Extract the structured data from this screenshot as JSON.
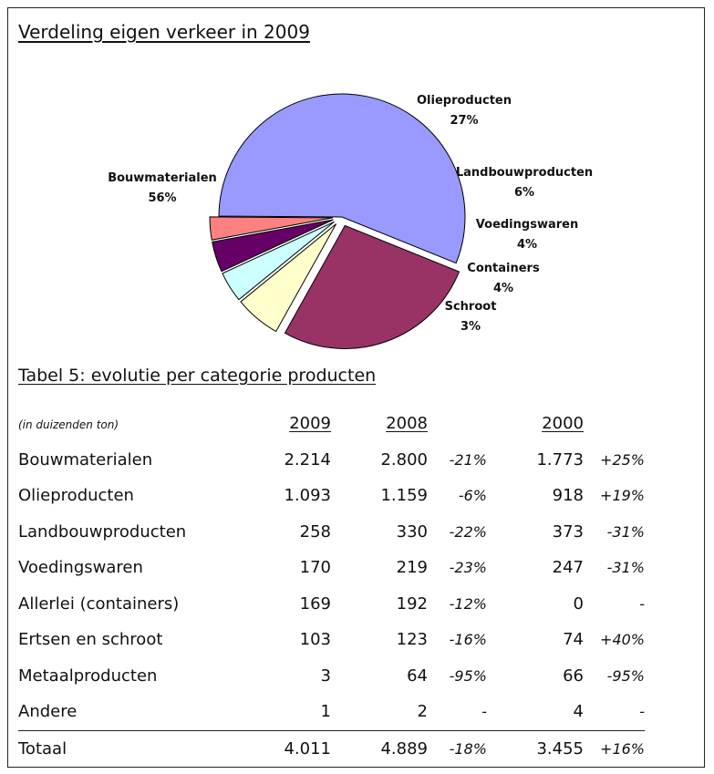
{
  "chart_title": "Verdeling eigen verkeer in 2009",
  "chart_data": {
    "type": "pie",
    "title": "Verdeling eigen verkeer in 2009",
    "slices": [
      {
        "label": "Olieproducten",
        "pct": "27%",
        "value": 27,
        "color": "#993366",
        "exploded": true
      },
      {
        "label": "Landbouwproducten",
        "pct": "6%",
        "value": 6,
        "color": "#ffffcc",
        "exploded": true
      },
      {
        "label": "Voedingswaren",
        "pct": "4%",
        "value": 4,
        "color": "#ccffff",
        "exploded": true
      },
      {
        "label": "Containers",
        "pct": "4%",
        "value": 4,
        "color": "#660066",
        "exploded": true
      },
      {
        "label": "Schroot",
        "pct": "3%",
        "value": 3,
        "color": "#ff8080",
        "exploded": true
      },
      {
        "label": "Bouwmaterialen",
        "pct": "56%",
        "value": 56,
        "color": "#9999ff",
        "exploded": false
      }
    ]
  },
  "table": {
    "title": "Tabel 5: evolutie per categorie producten",
    "unit": "(in duizenden ton)",
    "col_headers": {
      "y2009": "2009",
      "y2008": "2008",
      "y2000": "2000"
    },
    "rows": [
      {
        "label": "Bouwmaterialen",
        "v2009": "2.214",
        "v2008": "2.800",
        "p2008": "-21%",
        "v2000": "1.773",
        "p2000": "+25%"
      },
      {
        "label": "Olieproducten",
        "v2009": "1.093",
        "v2008": "1.159",
        "p2008": "-6%",
        "v2000": "918",
        "p2000": "+19%"
      },
      {
        "label": "Landbouwproducten",
        "v2009": "258",
        "v2008": "330",
        "p2008": "-22%",
        "v2000": "373",
        "p2000": "-31%"
      },
      {
        "label": "Voedingswaren",
        "v2009": "170",
        "v2008": "219",
        "p2008": "-23%",
        "v2000": "247",
        "p2000": "-31%"
      },
      {
        "label": "Allerlei (containers)",
        "v2009": "169",
        "v2008": "192",
        "p2008": "-12%",
        "v2000": "0",
        "p2000": "-"
      },
      {
        "label": "Ertsen en schroot",
        "v2009": "103",
        "v2008": "123",
        "p2008": "-16%",
        "v2000": "74",
        "p2000": "+40%"
      },
      {
        "label": "Metaalproducten",
        "v2009": "3",
        "v2008": "64",
        "p2008": "-95%",
        "v2000": "66",
        "p2000": "-95%"
      },
      {
        "label": "Andere",
        "v2009": "1",
        "v2008": "2",
        "p2008": "-",
        "v2000": "4",
        "p2000": "-"
      }
    ],
    "total": {
      "label": "Totaal",
      "v2009": "4.011",
      "v2008": "4.889",
      "p2008": "-18%",
      "v2000": "3.455",
      "p2000": "+16%"
    }
  }
}
